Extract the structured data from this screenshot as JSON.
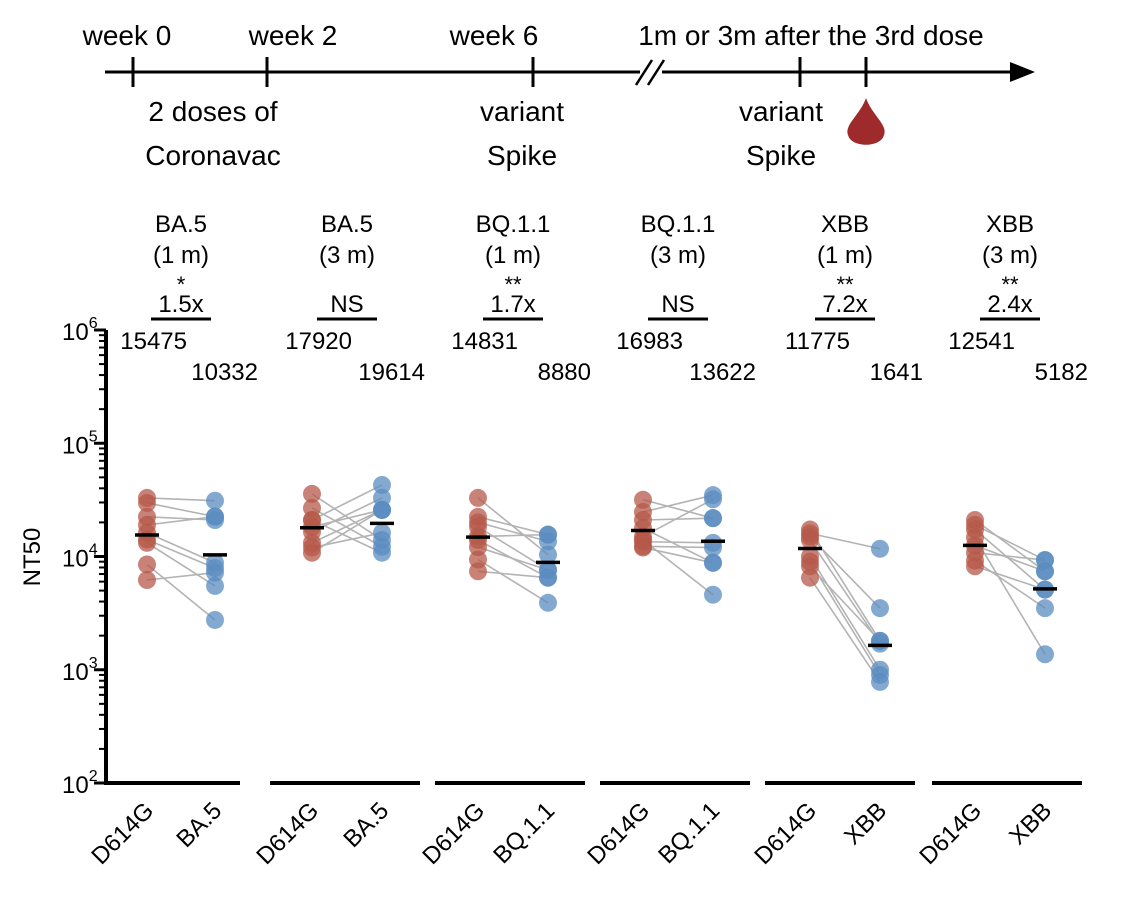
{
  "timeline": {
    "above_labels": [
      "week 0",
      "week 2",
      "week 6",
      "1m or 3m after the 3rd dose"
    ],
    "below_labels": [
      [
        "2 doses of",
        "Coronavac"
      ],
      [
        "variant",
        "Spike"
      ],
      [
        "variant",
        "Spike"
      ]
    ],
    "icons": [
      "blood-drop-icon"
    ],
    "colors": {
      "drop": "#9e2a2b"
    }
  },
  "chart_data": {
    "type": "scatter",
    "subtype": "paired dot plot with geometric mean lines",
    "ylabel": "NT50",
    "yscale": "log",
    "ylim": [
      100,
      1000000
    ],
    "yticks": [
      {
        "base": "10",
        "exp": "2"
      },
      {
        "base": "10",
        "exp": "3"
      },
      {
        "base": "10",
        "exp": "4"
      },
      {
        "base": "10",
        "exp": "5"
      },
      {
        "base": "10",
        "exp": "6"
      }
    ],
    "colors": {
      "D614G": "#b5584a",
      "variant": "#5b8cc0",
      "pair_line": "#b3b3b3",
      "mean": "#000000"
    },
    "groups": [
      {
        "title": "BA.5",
        "time": "(1 m)",
        "sig": "*",
        "fold": "1.5x",
        "categories": [
          "D614G",
          "BA.5"
        ],
        "means": [
          "15475",
          "10332"
        ],
        "pairs": [
          [
            32900,
            31100
          ],
          [
            29700,
            22500
          ],
          [
            22400,
            21000
          ],
          [
            19000,
            22500
          ],
          [
            16200,
            8800
          ],
          [
            14100,
            7900
          ],
          [
            13200,
            5500
          ],
          [
            8500,
            2750
          ],
          [
            6200,
            7200
          ]
        ]
      },
      {
        "title": "BA.5",
        "time": "(3 m)",
        "sig": "",
        "fold": "NS",
        "categories": [
          "D614G",
          "BA.5"
        ],
        "means": [
          "17920",
          "19614"
        ],
        "pairs": [
          [
            35700,
            14000
          ],
          [
            26800,
            12200
          ],
          [
            21000,
            42800
          ],
          [
            18300,
            25800
          ],
          [
            16500,
            32900
          ],
          [
            13200,
            25800
          ],
          [
            12000,
            16200
          ],
          [
            10800,
            25800
          ],
          [
            21000,
            10800
          ]
        ]
      },
      {
        "title": "BQ.1.1",
        "time": "(1 m)",
        "sig": "**",
        "fold": "1.7x",
        "categories": [
          "D614G",
          "BQ.1.1"
        ],
        "means": [
          "14831",
          "8880"
        ],
        "pairs": [
          [
            32900,
            10400
          ],
          [
            22400,
            15600
          ],
          [
            20000,
            13600
          ],
          [
            18300,
            7600
          ],
          [
            15000,
            15600
          ],
          [
            14000,
            6500
          ],
          [
            12100,
            7600
          ],
          [
            9400,
            3900
          ],
          [
            7400,
            6500
          ]
        ]
      },
      {
        "title": "BQ.1.1",
        "time": "(3 m)",
        "sig": "",
        "fold": "NS",
        "categories": [
          "D614G",
          "BQ.1.1"
        ],
        "means": [
          "16983",
          "13622"
        ],
        "pairs": [
          [
            31700,
            21800
          ],
          [
            24700,
            34800
          ],
          [
            21000,
            21800
          ],
          [
            17800,
            8800
          ],
          [
            15000,
            32000
          ],
          [
            13500,
            13200
          ],
          [
            12300,
            12000
          ],
          [
            12000,
            8800
          ],
          [
            14000,
            4600
          ]
        ]
      },
      {
        "title": "XBB",
        "time": "(1 m)",
        "sig": "**",
        "fold": "7.2x",
        "categories": [
          "D614G",
          "XBB"
        ],
        "means": [
          "11775",
          "1641"
        ],
        "pairs": [
          [
            17300,
            1800
          ],
          [
            16000,
            11700
          ],
          [
            15000,
            3500
          ],
          [
            14000,
            1700
          ],
          [
            10000,
            1000
          ],
          [
            9000,
            900
          ],
          [
            8200,
            1800
          ],
          [
            6500,
            780
          ]
        ]
      },
      {
        "title": "XBB",
        "time": "(3 m)",
        "sig": "**",
        "fold": "2.4x",
        "categories": [
          "D614G",
          "XBB"
        ],
        "means": [
          "12541",
          "5182"
        ],
        "pairs": [
          [
            21000,
            7400
          ],
          [
            19000,
            9300
          ],
          [
            17300,
            5100
          ],
          [
            14700,
            1370
          ],
          [
            12500,
            7400
          ],
          [
            10800,
            9300
          ],
          [
            9200,
            3500
          ],
          [
            8200,
            5100
          ]
        ]
      }
    ]
  }
}
